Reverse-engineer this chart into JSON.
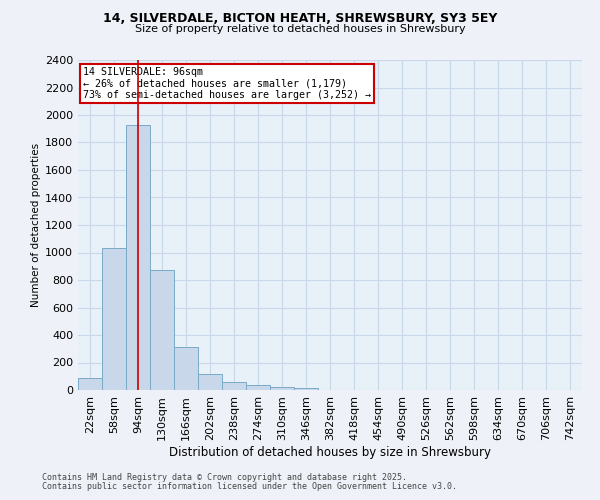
{
  "title1": "14, SILVERDALE, BICTON HEATH, SHREWSBURY, SY3 5EY",
  "title2": "Size of property relative to detached houses in Shrewsbury",
  "xlabel": "Distribution of detached houses by size in Shrewsbury",
  "ylabel": "Number of detached properties",
  "bar_color": "#c8d8ea",
  "bar_edge_color": "#7aaac8",
  "categories": [
    "22sqm",
    "58sqm",
    "94sqm",
    "130sqm",
    "166sqm",
    "202sqm",
    "238sqm",
    "274sqm",
    "310sqm",
    "346sqm",
    "382sqm",
    "418sqm",
    "454sqm",
    "490sqm",
    "526sqm",
    "562sqm",
    "598sqm",
    "634sqm",
    "670sqm",
    "706sqm",
    "742sqm"
  ],
  "values": [
    90,
    1030,
    1930,
    875,
    315,
    115,
    55,
    40,
    25,
    15,
    0,
    0,
    0,
    0,
    0,
    0,
    0,
    0,
    0,
    0,
    0
  ],
  "property_bin_index": 2,
  "annotation_title": "14 SILVERDALE: 96sqm",
  "annotation_line1": "← 26% of detached houses are smaller (1,179)",
  "annotation_line2": "73% of semi-detached houses are larger (3,252) →",
  "vline_color": "#cc0000",
  "annotation_box_color": "#ffffff",
  "annotation_box_edge": "#cc0000",
  "footer1": "Contains HM Land Registry data © Crown copyright and database right 2025.",
  "footer2": "Contains public sector information licensed under the Open Government Licence v3.0.",
  "ylim": [
    0,
    2400
  ],
  "yticks": [
    0,
    200,
    400,
    600,
    800,
    1000,
    1200,
    1400,
    1600,
    1800,
    2000,
    2200,
    2400
  ],
  "grid_color": "#c8d8e8",
  "bg_color": "#e8f0f8",
  "fig_bg_color": "#eef2f8"
}
